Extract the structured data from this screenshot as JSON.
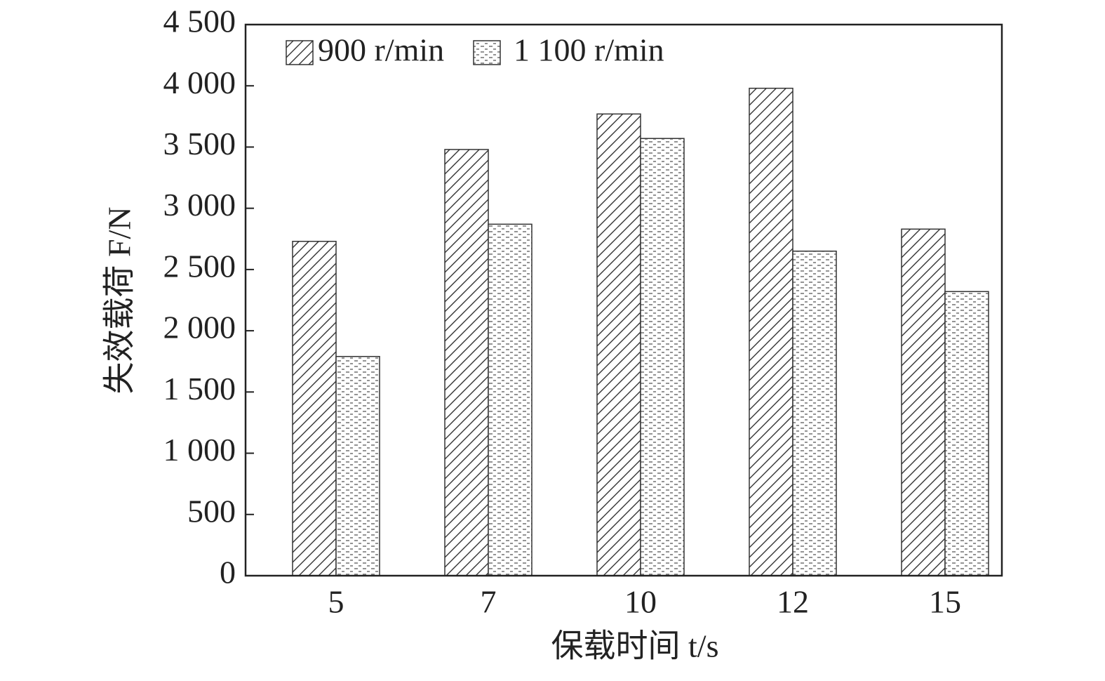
{
  "chart_data": {
    "type": "bar",
    "x_label": "保载时间 t/s",
    "y_label": "失效载荷 F/N",
    "categories": [
      "5",
      "7",
      "10",
      "12",
      "15"
    ],
    "series": [
      {
        "name": "900 r/min",
        "color": "#333333",
        "pattern": "diagonal",
        "values": [
          2730,
          3480,
          3770,
          3980,
          2830
        ]
      },
      {
        "name": "1 100 r/min",
        "color": "#333333",
        "pattern": "dashed",
        "values": [
          1790,
          2870,
          3570,
          2650,
          2320
        ]
      }
    ],
    "ylim": [
      0,
      4500
    ],
    "yticks": [
      0,
      500,
      {
        "value": 1000,
        "label": "1 000"
      },
      {
        "value": 1500,
        "label": "1 500"
      },
      {
        "value": 2000,
        "label": "2 000"
      },
      {
        "value": 2500,
        "label": "2 500"
      },
      {
        "value": 3000,
        "label": "3 000"
      },
      {
        "value": 3500,
        "label": "3 500"
      },
      {
        "value": 4000,
        "label": "4 000"
      },
      {
        "value": 4500,
        "label": "4 500"
      }
    ],
    "legend": "upper left"
  }
}
